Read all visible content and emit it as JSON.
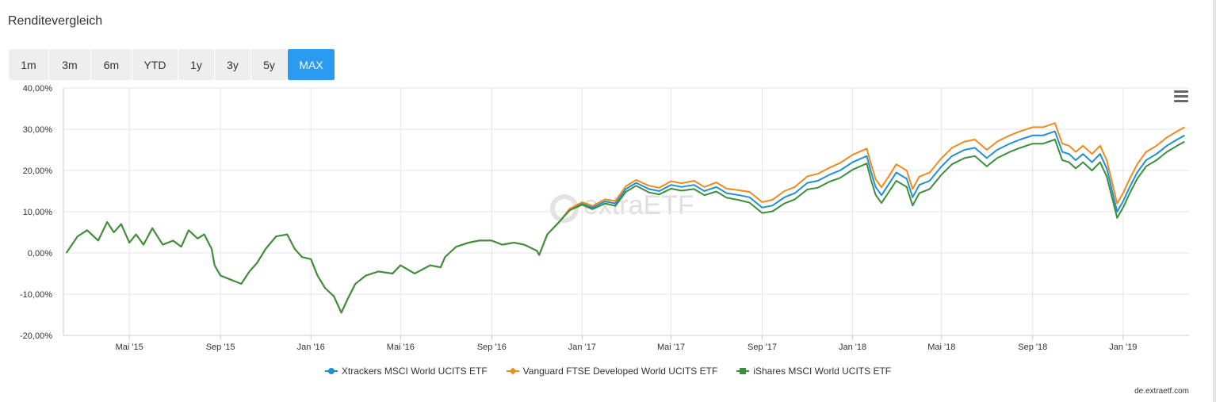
{
  "header": {
    "title": "Renditevergleich"
  },
  "range_buttons": [
    {
      "label": "1m",
      "active": false
    },
    {
      "label": "3m",
      "active": false
    },
    {
      "label": "6m",
      "active": false
    },
    {
      "label": "YTD",
      "active": false
    },
    {
      "label": "1y",
      "active": false
    },
    {
      "label": "3y",
      "active": false
    },
    {
      "label": "5y",
      "active": false
    },
    {
      "label": "MAX",
      "active": true
    }
  ],
  "menu": {
    "icon": "hamburger-menu-icon"
  },
  "watermark": {
    "text": "extraETF",
    "icon": "extraetf-logo-icon"
  },
  "credit": "de.extraetf.com",
  "colors": {
    "series_1": "#1f8fd6",
    "series_2": "#f08a1c",
    "series_3": "#3a8f3a",
    "active_button": "#2a9bf0",
    "grid": "#e6e6e6"
  },
  "chart_data": {
    "type": "line",
    "title": "",
    "xlabel": "",
    "ylabel": "",
    "ylim": [
      -20,
      40
    ],
    "y_ticks": [
      -20,
      -10,
      0,
      10,
      20,
      30,
      40
    ],
    "y_tick_labels": [
      "-20,00%",
      "-10,00%",
      "0,00%",
      "10,00%",
      "20,00%",
      "30,00%",
      "40,00%"
    ],
    "x_range": [
      "2015-02-01",
      "2019-03-31"
    ],
    "x_ticks": [
      "2015-05-01",
      "2015-09-01",
      "2016-01-01",
      "2016-05-01",
      "2016-09-01",
      "2017-01-01",
      "2017-05-01",
      "2017-09-01",
      "2018-01-01",
      "2018-05-01",
      "2018-09-01",
      "2019-01-01"
    ],
    "x_tick_labels": [
      "Mai '15",
      "Sep '15",
      "Jan '16",
      "Mai '16",
      "Sep '16",
      "Jan '17",
      "Mai '17",
      "Sep '17",
      "Jan '18",
      "Mai '18",
      "Sep '18",
      "Jan '19"
    ],
    "legend_position": "bottom-center",
    "grid": true,
    "x": [
      "2015-02-05",
      "2015-02-20",
      "2015-03-05",
      "2015-03-20",
      "2015-04-01",
      "2015-04-10",
      "2015-04-20",
      "2015-05-01",
      "2015-05-10",
      "2015-05-20",
      "2015-06-01",
      "2015-06-15",
      "2015-06-29",
      "2015-07-10",
      "2015-07-20",
      "2015-08-01",
      "2015-08-10",
      "2015-08-20",
      "2015-08-24",
      "2015-09-01",
      "2015-09-15",
      "2015-09-29",
      "2015-10-10",
      "2015-10-20",
      "2015-11-01",
      "2015-11-15",
      "2015-11-30",
      "2015-12-10",
      "2015-12-20",
      "2016-01-01",
      "2016-01-10",
      "2016-01-20",
      "2016-02-01",
      "2016-02-11",
      "2016-02-20",
      "2016-03-01",
      "2016-03-15",
      "2016-04-01",
      "2016-04-20",
      "2016-05-01",
      "2016-05-20",
      "2016-06-10",
      "2016-06-24",
      "2016-06-30",
      "2016-07-15",
      "2016-08-01",
      "2016-08-15",
      "2016-09-01",
      "2016-09-15",
      "2016-10-01",
      "2016-10-15",
      "2016-11-01",
      "2016-11-04",
      "2016-11-15",
      "2016-12-01",
      "2016-12-15",
      "2017-01-01",
      "2017-01-15",
      "2017-02-01",
      "2017-02-15",
      "2017-03-01",
      "2017-03-15",
      "2017-04-01",
      "2017-04-15",
      "2017-05-01",
      "2017-05-15",
      "2017-06-01",
      "2017-06-15",
      "2017-07-01",
      "2017-07-15",
      "2017-08-01",
      "2017-08-15",
      "2017-09-01",
      "2017-09-15",
      "2017-10-01",
      "2017-10-15",
      "2017-11-01",
      "2017-11-15",
      "2017-12-01",
      "2017-12-15",
      "2018-01-01",
      "2018-01-20",
      "2018-01-26",
      "2018-02-01",
      "2018-02-09",
      "2018-02-20",
      "2018-03-01",
      "2018-03-15",
      "2018-03-23",
      "2018-04-01",
      "2018-04-15",
      "2018-05-01",
      "2018-05-15",
      "2018-06-01",
      "2018-06-15",
      "2018-07-01",
      "2018-07-15",
      "2018-08-01",
      "2018-08-15",
      "2018-09-01",
      "2018-09-15",
      "2018-10-01",
      "2018-10-11",
      "2018-10-20",
      "2018-10-29",
      "2018-11-08",
      "2018-11-20",
      "2018-12-01",
      "2018-12-10",
      "2018-12-24",
      "2019-01-01",
      "2019-01-10",
      "2019-01-20",
      "2019-02-01",
      "2019-02-15",
      "2019-03-01",
      "2019-03-15",
      "2019-03-25"
    ],
    "series": [
      {
        "name": "Xtrackers MSCI World UCITS ETF",
        "color": "#1f8fd6",
        "marker": "circle",
        "values": [
          0.0,
          4.0,
          5.5,
          3.0,
          7.5,
          5.0,
          7.0,
          2.5,
          4.5,
          2.0,
          6.0,
          2.0,
          3.0,
          1.5,
          5.5,
          3.5,
          4.5,
          1.0,
          -3.0,
          -5.5,
          -6.5,
          -7.5,
          -4.5,
          -2.5,
          1.0,
          4.0,
          4.5,
          1.0,
          -1.0,
          -1.5,
          -5.5,
          -8.5,
          -10.5,
          -14.5,
          -11.0,
          -7.5,
          -5.5,
          -4.5,
          -5.0,
          -3.0,
          -5.0,
          -3.0,
          -3.5,
          -1.0,
          1.5,
          2.5,
          3.0,
          3.0,
          2.0,
          2.5,
          2.0,
          0.5,
          -0.5,
          4.5,
          7.5,
          10.5,
          12.0,
          11.0,
          12.5,
          12.0,
          15.5,
          17.0,
          15.5,
          15.0,
          16.5,
          16.0,
          16.5,
          15.0,
          16.0,
          14.5,
          14.0,
          13.5,
          11.0,
          11.5,
          13.5,
          14.5,
          17.0,
          17.5,
          19.0,
          20.0,
          22.0,
          23.5,
          19.5,
          16.0,
          14.0,
          17.0,
          19.5,
          18.0,
          13.5,
          16.5,
          17.5,
          21.0,
          23.5,
          25.0,
          25.5,
          23.0,
          25.0,
          26.5,
          27.5,
          28.5,
          28.5,
          29.5,
          24.5,
          24.0,
          22.5,
          24.0,
          22.0,
          24.0,
          20.5,
          10.0,
          12.5,
          16.0,
          19.5,
          22.5,
          24.0,
          26.0,
          27.5,
          28.5
        ]
      },
      {
        "name": "Vanguard FTSE Developed World UCITS ETF",
        "color": "#f08a1c",
        "marker": "diamond",
        "values": [
          0.0,
          4.0,
          5.5,
          3.0,
          7.5,
          5.0,
          7.0,
          2.5,
          4.5,
          2.0,
          6.0,
          2.0,
          3.0,
          1.5,
          5.5,
          3.5,
          4.5,
          1.0,
          -3.0,
          -5.5,
          -6.5,
          -7.5,
          -4.5,
          -2.5,
          1.0,
          4.0,
          4.5,
          1.0,
          -1.0,
          -1.5,
          -5.5,
          -8.5,
          -10.5,
          -14.5,
          -11.0,
          -7.5,
          -5.5,
          -4.5,
          -5.0,
          -3.0,
          -5.0,
          -3.0,
          -3.5,
          -1.0,
          1.5,
          2.5,
          3.0,
          3.0,
          2.0,
          2.5,
          2.0,
          0.5,
          -0.5,
          4.5,
          7.5,
          10.7,
          12.3,
          11.4,
          13.0,
          12.6,
          16.2,
          17.7,
          16.3,
          15.8,
          17.4,
          16.9,
          17.5,
          16.0,
          17.1,
          15.6,
          15.2,
          14.8,
          12.3,
          12.9,
          15.0,
          16.0,
          18.6,
          19.2,
          20.7,
          21.8,
          23.8,
          25.3,
          21.4,
          17.9,
          15.9,
          18.9,
          21.5,
          20.0,
          15.5,
          18.5,
          19.5,
          23.0,
          25.5,
          27.0,
          27.5,
          25.0,
          27.0,
          28.5,
          29.5,
          30.5,
          30.5,
          31.5,
          26.5,
          26.0,
          24.5,
          26.0,
          24.0,
          26.0,
          22.5,
          12.0,
          14.5,
          18.0,
          21.5,
          24.5,
          26.0,
          28.0,
          29.5,
          30.5
        ]
      },
      {
        "name": "iShares MSCI World UCITS ETF",
        "color": "#3a8f3a",
        "marker": "square",
        "values": [
          0.0,
          4.0,
          5.5,
          3.0,
          7.5,
          5.0,
          7.0,
          2.5,
          4.5,
          2.0,
          6.0,
          2.0,
          3.0,
          1.5,
          5.5,
          3.5,
          4.5,
          1.0,
          -3.0,
          -5.5,
          -6.5,
          -7.5,
          -4.5,
          -2.5,
          1.0,
          4.0,
          4.5,
          1.0,
          -1.0,
          -1.5,
          -5.5,
          -8.5,
          -10.5,
          -14.5,
          -11.0,
          -7.5,
          -5.5,
          -4.5,
          -5.0,
          -3.0,
          -5.0,
          -3.0,
          -3.5,
          -1.0,
          1.5,
          2.5,
          3.0,
          3.0,
          2.0,
          2.5,
          2.0,
          0.5,
          -0.5,
          4.5,
          7.5,
          10.3,
          11.7,
          10.6,
          12.0,
          11.4,
          14.8,
          16.3,
          14.7,
          14.2,
          15.6,
          15.1,
          15.5,
          14.0,
          14.9,
          13.4,
          12.8,
          12.2,
          9.7,
          10.1,
          12.0,
          13.0,
          15.4,
          15.8,
          17.3,
          18.2,
          20.2,
          21.7,
          17.6,
          14.1,
          12.1,
          15.1,
          17.5,
          16.0,
          11.5,
          14.5,
          15.5,
          19.0,
          21.5,
          23.0,
          23.5,
          21.0,
          23.0,
          24.5,
          25.5,
          26.5,
          26.5,
          27.5,
          22.5,
          22.0,
          20.5,
          22.0,
          20.0,
          22.0,
          18.5,
          8.5,
          11.0,
          14.5,
          18.0,
          21.0,
          22.5,
          24.5,
          26.0,
          27.0
        ]
      }
    ]
  }
}
